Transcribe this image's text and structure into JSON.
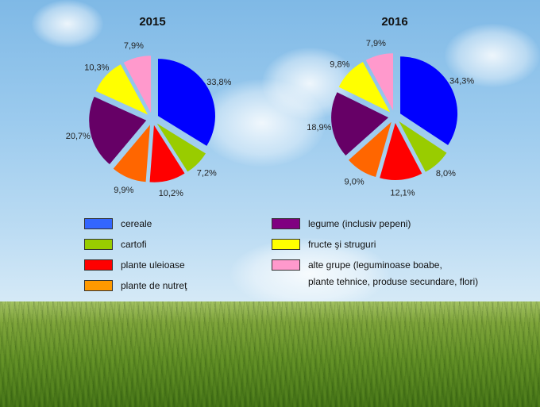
{
  "chart_data": [
    {
      "type": "pie",
      "title": "2015",
      "categories": [
        "cereale",
        "cartofi",
        "plante uleioase",
        "plante de nutreţ",
        "legume (inclusiv pepeni)",
        "fructe şi struguri",
        "alte grupe"
      ],
      "values": [
        33.8,
        7.2,
        10.2,
        9.9,
        20.7,
        10.3,
        7.9
      ],
      "labels": [
        "33,8%",
        "7,2%",
        "10,2%",
        "9,9%",
        "20,7%",
        "10,3%",
        "7,9%"
      ],
      "colors": [
        "#0000ff",
        "#99cc00",
        "#ff0000",
        "#ff6600",
        "#660066",
        "#ffff00",
        "#ff99cc"
      ],
      "exploded": true,
      "start_angle": "12 o'clock, clockwise"
    },
    {
      "type": "pie",
      "title": "2016",
      "categories": [
        "cereale",
        "cartofi",
        "plante uleioase",
        "plante de nutreţ",
        "legume (inclusiv pepeni)",
        "fructe şi struguri",
        "alte grupe"
      ],
      "values": [
        34.3,
        8.0,
        12.1,
        9.0,
        18.9,
        9.8,
        7.9
      ],
      "labels": [
        "34,3%",
        "8,0%",
        "12,1%",
        "9,0%",
        "18,9%",
        "9,8%",
        "7,9%"
      ],
      "colors": [
        "#0000ff",
        "#99cc00",
        "#ff0000",
        "#ff6600",
        "#660066",
        "#ffff00",
        "#ff99cc"
      ],
      "exploded": true,
      "start_angle": "12 o'clock, clockwise"
    }
  ],
  "legend": {
    "items": [
      {
        "label": "cereale",
        "color": "#3366ff"
      },
      {
        "label": "cartofi",
        "color": "#99cc00"
      },
      {
        "label": "plante uleioase",
        "color": "#ff0000"
      },
      {
        "label": "plante de nutreţ",
        "color": "#ff9900"
      },
      {
        "label": "legume (inclusiv pepeni)",
        "color": "#800080"
      },
      {
        "label": "fructe şi struguri",
        "color": "#ffff00"
      },
      {
        "label": "alte grupe (leguminoase boabe,",
        "color": "#ff99cc"
      }
    ],
    "continuation": "plante tehnice, produse secundare, flori)"
  }
}
